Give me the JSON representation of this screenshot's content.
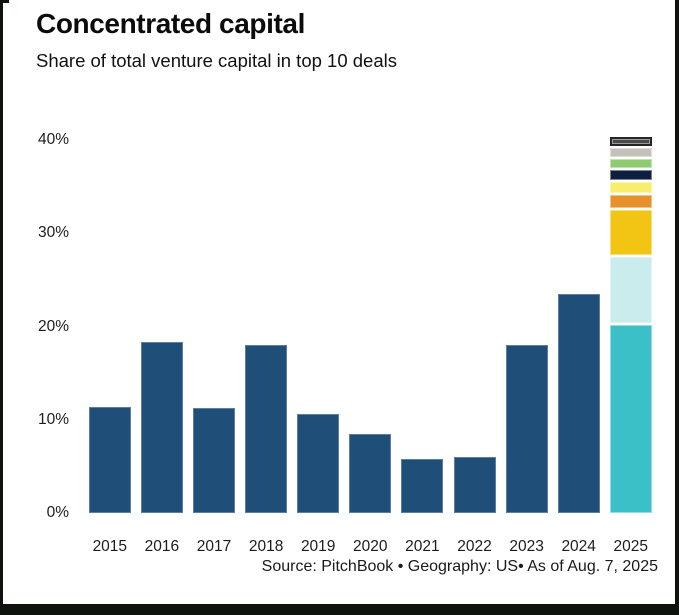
{
  "frame": {
    "border_color": "#0e130e",
    "background": "#ffffff"
  },
  "header": {
    "title": "Concentrated capital",
    "subtitle": "Share of total venture capital in top 10 deals"
  },
  "footer": {
    "source": "Source: PitchBook • Geography: US• As of Aug. 7, 2025"
  },
  "chart_data": {
    "type": "bar",
    "title": "Concentrated capital",
    "subtitle": "Share of total venture capital in top 10 deals",
    "categories": [
      "2015",
      "2016",
      "2017",
      "2018",
      "2019",
      "2020",
      "2021",
      "2022",
      "2023",
      "2024",
      "2025"
    ],
    "values": [
      11.4,
      18.3,
      11.3,
      18.0,
      10.6,
      8.5,
      5.8,
      6.0,
      18.0,
      23.5,
      40.3
    ],
    "bar_color": "#1f4e79",
    "stacked_category": "2025",
    "stacked_segments_bottom_to_top": [
      {
        "value": 20.2,
        "color": "#3bc0c8"
      },
      {
        "value": 7.3,
        "color": "#cbecec"
      },
      {
        "value": 5.0,
        "color": "#f2c515"
      },
      {
        "value": 1.6,
        "color": "#e6912c"
      },
      {
        "value": 1.4,
        "color": "#f8ee6e"
      },
      {
        "value": 1.3,
        "color": "#0e2040"
      },
      {
        "value": 1.2,
        "color": "#8ecb71"
      },
      {
        "value": 1.1,
        "color": "#c3c1bc"
      },
      {
        "value": 1.2,
        "color": "#4a4a4a",
        "border_color": "#262626"
      }
    ],
    "xlabel": "",
    "ylabel": "",
    "ylim": [
      0,
      40
    ],
    "yticks": [
      {
        "value": 0,
        "label": "0%"
      },
      {
        "value": 10,
        "label": "10%"
      },
      {
        "value": 20,
        "label": "20%"
      },
      {
        "value": 30,
        "label": "30%"
      },
      {
        "value": 40,
        "label": "40%"
      }
    ],
    "grid": false,
    "legend": "none"
  }
}
